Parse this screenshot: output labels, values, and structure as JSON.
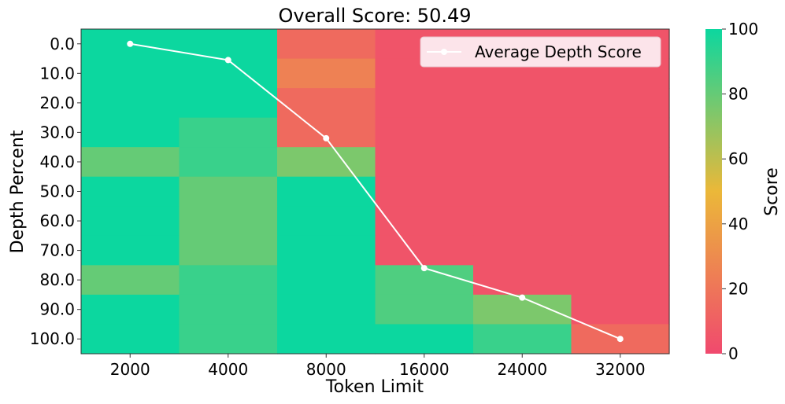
{
  "chart_data": {
    "type": "heatmap",
    "title": "Overall Score: 50.49",
    "xlabel": "Token Limit",
    "ylabel": "Depth Percent",
    "x_categories": [
      "2000",
      "4000",
      "8000",
      "16000",
      "24000",
      "32000"
    ],
    "y_categories": [
      "0.0",
      "10.0",
      "20.0",
      "30.0",
      "40.0",
      "50.0",
      "60.0",
      "70.0",
      "80.0",
      "90.0",
      "100.0"
    ],
    "values": [
      [
        100,
        100,
        15,
        5,
        5,
        5
      ],
      [
        100,
        100,
        25,
        5,
        5,
        5
      ],
      [
        100,
        100,
        15,
        5,
        5,
        5
      ],
      [
        100,
        90,
        15,
        5,
        5,
        5
      ],
      [
        80,
        90,
        75,
        5,
        5,
        5
      ],
      [
        100,
        80,
        100,
        5,
        5,
        5
      ],
      [
        100,
        80,
        100,
        5,
        5,
        5
      ],
      [
        100,
        80,
        100,
        5,
        5,
        5
      ],
      [
        80,
        90,
        100,
        85,
        5,
        5
      ],
      [
        100,
        90,
        100,
        85,
        75,
        5
      ],
      [
        100,
        90,
        100,
        100,
        90,
        15
      ]
    ],
    "colorbar": {
      "label": "Score",
      "range": [
        0,
        100
      ],
      "ticks": [
        "0",
        "20",
        "40",
        "60",
        "80",
        "100"
      ],
      "colors": [
        "#F0496E",
        "#EBB839",
        "#0CD79F"
      ]
    },
    "line_series": {
      "name": "Average Depth Score",
      "color": "#ffffff",
      "points": [
        {
          "x": "2000",
          "y": 0
        },
        {
          "x": "4000",
          "y": 5.5
        },
        {
          "x": "8000",
          "y": 32
        },
        {
          "x": "16000",
          "y": 76
        },
        {
          "x": "24000",
          "y": 86
        },
        {
          "x": "32000",
          "y": 100
        }
      ]
    },
    "legend": {
      "position": "top-right",
      "entries": [
        "Average Depth Score"
      ]
    },
    "grid": false
  }
}
